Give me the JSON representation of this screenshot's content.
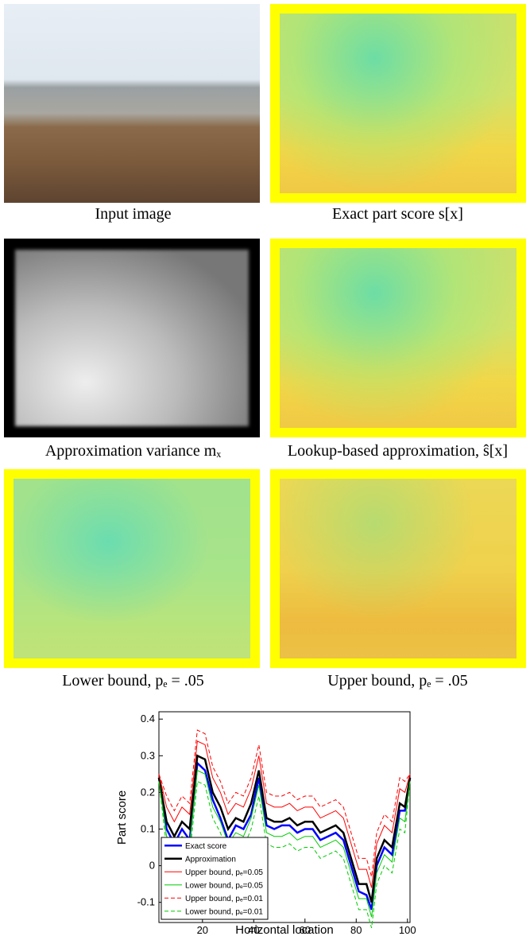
{
  "panels": [
    {
      "caption": "Input image"
    },
    {
      "caption": "Exact part score s[x]"
    },
    {
      "caption": "Approximation variance mₓ"
    },
    {
      "caption": "Lookup-based approximation, ŝ[x]"
    },
    {
      "caption": "Lower bound, pₑ = .05"
    },
    {
      "caption": "Upper bound, pₑ = .05"
    }
  ],
  "chart_data": {
    "type": "line",
    "xlabel": "Horizontal location",
    "ylabel": "Part score",
    "xlim": [
      3,
      101
    ],
    "ylim": [
      -0.155,
      0.42
    ],
    "xticks": [
      20,
      40,
      60,
      80,
      100
    ],
    "yticks": [
      -0.1,
      0,
      0.1,
      0.2,
      0.3,
      0.4
    ],
    "legend": "lower left",
    "x": [
      3,
      6,
      9,
      12,
      15,
      18,
      21,
      24,
      27,
      30,
      33,
      36,
      39,
      42,
      45,
      48,
      51,
      54,
      57,
      60,
      63,
      66,
      69,
      72,
      75,
      78,
      81,
      84,
      86,
      88,
      91,
      94,
      97,
      99,
      101
    ],
    "series": [
      {
        "name": "Exact score",
        "color": "#0000ff",
        "style": "solid",
        "linewidth": 2.5,
        "values": [
          0.24,
          0.1,
          0.06,
          0.1,
          0.07,
          0.28,
          0.26,
          0.18,
          0.13,
          0.07,
          0.11,
          0.1,
          0.14,
          0.24,
          0.11,
          0.1,
          0.11,
          0.11,
          0.09,
          0.1,
          0.1,
          0.07,
          0.08,
          0.09,
          0.07,
          0.0,
          -0.07,
          -0.08,
          -0.12,
          0.0,
          0.05,
          0.03,
          0.15,
          0.15,
          0.24
        ]
      },
      {
        "name": "Approximation",
        "color": "#000000",
        "style": "solid",
        "linewidth": 2.5,
        "values": [
          0.24,
          0.12,
          0.08,
          0.12,
          0.1,
          0.3,
          0.29,
          0.2,
          0.16,
          0.1,
          0.13,
          0.12,
          0.17,
          0.26,
          0.13,
          0.12,
          0.12,
          0.13,
          0.11,
          0.12,
          0.12,
          0.09,
          0.1,
          0.11,
          0.09,
          0.02,
          -0.05,
          -0.05,
          -0.1,
          0.02,
          0.07,
          0.05,
          0.17,
          0.16,
          0.24
        ]
      },
      {
        "name": "Upper bound, pₑ=0.05",
        "color": "#ff0000",
        "style": "solid",
        "linewidth": 1,
        "values": [
          0.25,
          0.16,
          0.12,
          0.16,
          0.14,
          0.34,
          0.33,
          0.24,
          0.2,
          0.14,
          0.17,
          0.16,
          0.21,
          0.3,
          0.17,
          0.16,
          0.16,
          0.17,
          0.15,
          0.16,
          0.16,
          0.13,
          0.14,
          0.15,
          0.13,
          0.06,
          -0.01,
          -0.01,
          -0.06,
          0.06,
          0.11,
          0.09,
          0.21,
          0.2,
          0.25
        ]
      },
      {
        "name": "Lower bound, pₑ=0.05",
        "color": "#00cc00",
        "style": "solid",
        "linewidth": 1,
        "values": [
          0.23,
          0.08,
          0.04,
          0.08,
          0.06,
          0.26,
          0.25,
          0.16,
          0.12,
          0.06,
          0.09,
          0.08,
          0.13,
          0.22,
          0.09,
          0.08,
          0.08,
          0.09,
          0.07,
          0.08,
          0.08,
          0.05,
          0.06,
          0.07,
          0.05,
          -0.02,
          -0.09,
          -0.09,
          -0.14,
          -0.02,
          0.03,
          0.01,
          0.13,
          0.12,
          0.23
        ]
      },
      {
        "name": "Upper bound, pₑ=0.01",
        "color": "#ff0000",
        "style": "dashed",
        "linewidth": 1,
        "values": [
          0.25,
          0.19,
          0.15,
          0.19,
          0.17,
          0.37,
          0.36,
          0.27,
          0.23,
          0.17,
          0.2,
          0.19,
          0.24,
          0.33,
          0.2,
          0.19,
          0.19,
          0.2,
          0.18,
          0.19,
          0.19,
          0.16,
          0.17,
          0.18,
          0.16,
          0.09,
          0.02,
          0.02,
          -0.03,
          0.09,
          0.14,
          0.12,
          0.24,
          0.23,
          0.25
        ]
      },
      {
        "name": "Lower bound, pₑ=0.01",
        "color": "#00cc00",
        "style": "dashed",
        "linewidth": 1,
        "values": [
          0.23,
          0.05,
          0.01,
          0.05,
          0.03,
          0.23,
          0.22,
          0.13,
          0.09,
          0.03,
          0.06,
          0.05,
          0.1,
          0.19,
          0.06,
          0.05,
          0.05,
          0.06,
          0.04,
          0.05,
          0.05,
          0.02,
          0.03,
          0.04,
          0.02,
          -0.05,
          -0.12,
          -0.12,
          -0.17,
          -0.05,
          0.0,
          -0.02,
          0.1,
          0.09,
          0.23
        ]
      }
    ]
  }
}
